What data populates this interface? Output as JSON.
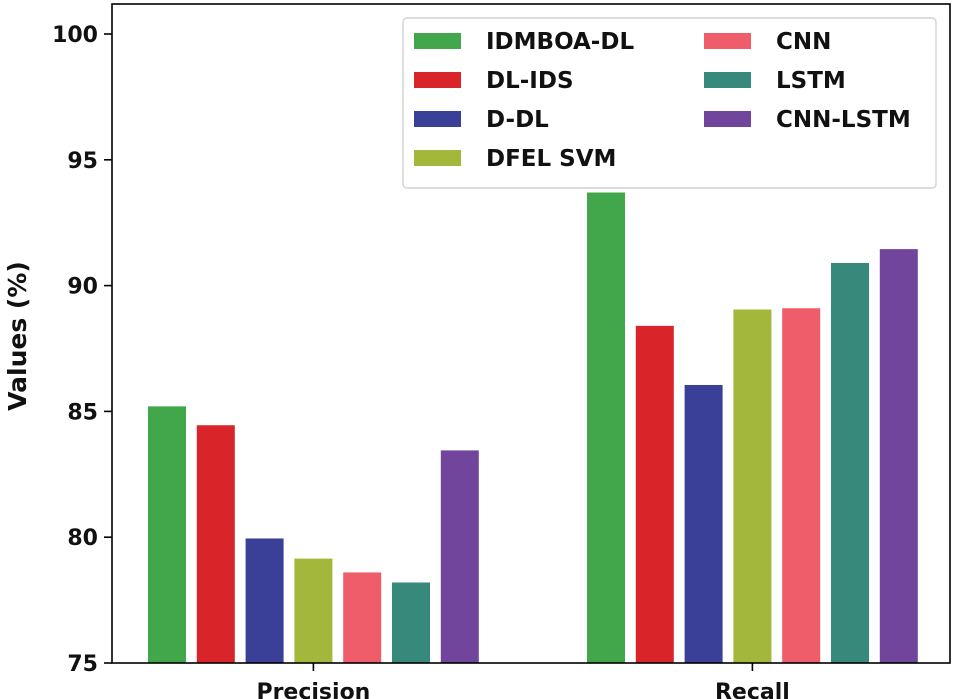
{
  "chart_data": {
    "type": "bar",
    "title": "",
    "xlabel": "",
    "ylabel": "Values (%)",
    "ylim": [
      75,
      100
    ],
    "yticks": [
      "75",
      "80",
      "85",
      "90",
      "95",
      "100"
    ],
    "categories": [
      "Precision",
      "Recall"
    ],
    "legend_position": "top-right",
    "series": [
      {
        "name": "IDMBOA-DL",
        "color": "#41a74a",
        "values": [
          85.2,
          93.7
        ]
      },
      {
        "name": "DL-IDS",
        "color": "#d92429",
        "values": [
          84.45,
          88.4
        ]
      },
      {
        "name": "D-DL",
        "color": "#3a3f98",
        "values": [
          79.95,
          86.05
        ]
      },
      {
        "name": "DFEL SVM",
        "color": "#a3b83b",
        "values": [
          79.15,
          89.05
        ]
      },
      {
        "name": "CNN",
        "color": "#ef5d6a",
        "values": [
          78.6,
          89.1
        ]
      },
      {
        "name": "LSTM",
        "color": "#37897b",
        "values": [
          78.2,
          90.9
        ]
      },
      {
        "name": "CNN-LSTM",
        "color": "#71459b",
        "values": [
          83.45,
          91.45
        ]
      }
    ]
  }
}
